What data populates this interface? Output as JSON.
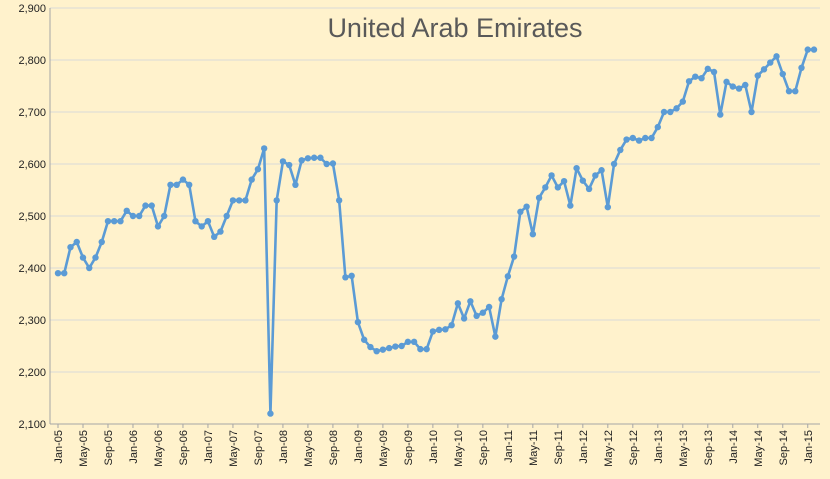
{
  "colors": {
    "background": "#FFF2CC",
    "series": "#5B9BD5",
    "gridline": "#D9D9D9",
    "title": "#595959"
  },
  "chart_data": {
    "type": "line",
    "title": "United Arab Emirates",
    "xlabel": "",
    "ylabel": "",
    "ylim": [
      2100,
      2900
    ],
    "yticks": [
      "2,100",
      "2,200",
      "2,300",
      "2,400",
      "2,500",
      "2,600",
      "2,700",
      "2,800",
      "2,900"
    ],
    "ytick_values": [
      2100,
      2200,
      2300,
      2400,
      2500,
      2600,
      2700,
      2800,
      2900
    ],
    "x_start": "Jan-05",
    "x_end": "Feb-15",
    "xtick_labels": [
      "Jan-05",
      "May-05",
      "Sep-05",
      "Jan-06",
      "May-06",
      "Sep-06",
      "Jan-07",
      "May-07",
      "Sep-07",
      "Jan-08",
      "May-08",
      "Sep-08",
      "Jan-09",
      "May-09",
      "Sep-09",
      "Jan-10",
      "May-10",
      "Sep-10",
      "Jan-11",
      "May-11",
      "Sep-11",
      "Jan-12",
      "May-12",
      "Sep-12",
      "Jan-13",
      "May-13",
      "Sep-13",
      "Jan-14",
      "May-14",
      "Sep-14",
      "Jan-15"
    ],
    "grid": true,
    "legend": "none",
    "series": [
      {
        "values": [
          2390,
          2390,
          2440,
          2450,
          2420,
          2400,
          2420,
          2450,
          2490,
          2490,
          2490,
          2510,
          2500,
          2500,
          2520,
          2520,
          2480,
          2500,
          2560,
          2560,
          2570,
          2560,
          2490,
          2480,
          2490,
          2460,
          2470,
          2500,
          2530,
          2530,
          2530,
          2570,
          2590,
          2630,
          2120,
          2530,
          2605,
          2598,
          2560,
          2607,
          2611,
          2612,
          2612,
          2600,
          2601,
          2530,
          2382,
          2385,
          2296,
          2262,
          2248,
          2240,
          2243,
          2246,
          2249,
          2250,
          2258,
          2258,
          2244,
          2244,
          2278,
          2281,
          2282,
          2290,
          2332,
          2303,
          2336,
          2308,
          2314,
          2325,
          2268,
          2340,
          2384,
          2422,
          2508,
          2518,
          2465,
          2535,
          2555,
          2578,
          2555,
          2567,
          2520,
          2592,
          2568,
          2552,
          2578,
          2588,
          2517,
          2600,
          2627,
          2647,
          2650,
          2645,
          2650,
          2650,
          2671,
          2700,
          2700,
          2707,
          2720,
          2759,
          2768,
          2765,
          2783,
          2777,
          2695,
          2758,
          2749,
          2745,
          2752,
          2700,
          2770,
          2782,
          2795,
          2807,
          2773,
          2740,
          2740,
          2785,
          2820,
          2820
        ]
      }
    ]
  }
}
